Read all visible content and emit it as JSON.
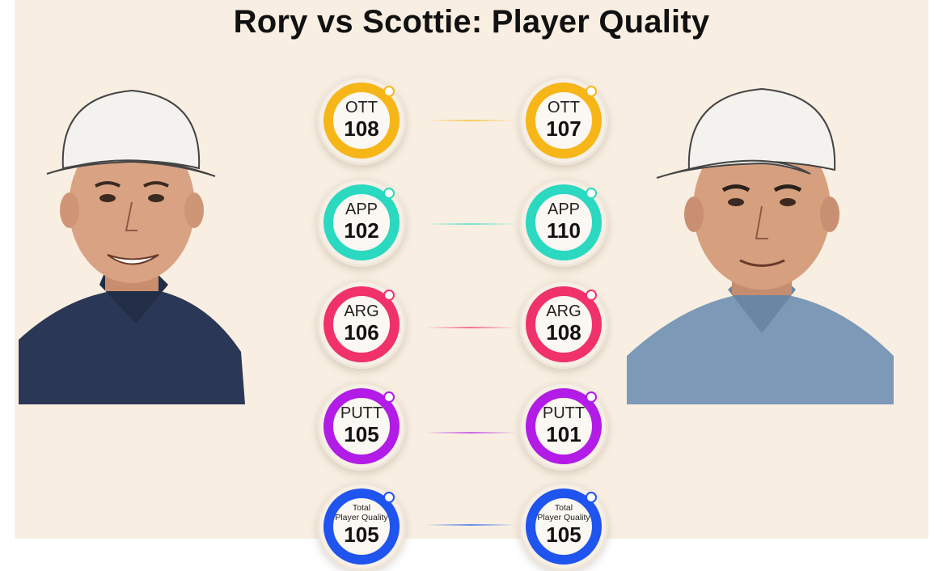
{
  "title": "Rory vs Scottie: Player Quality",
  "players": {
    "left": {
      "portrait_icon": "rory-sketch-portrait"
    },
    "right": {
      "portrait_icon": "scottie-sketch-portrait"
    }
  },
  "metrics": [
    {
      "label": "OTT",
      "rory": "108",
      "scottie": "107",
      "color": "#f6b618"
    },
    {
      "label": "APP",
      "rory": "102",
      "scottie": "110",
      "color": "#2ad9bf"
    },
    {
      "label": "ARG",
      "rory": "106",
      "scottie": "108",
      "color": "#f0316a"
    },
    {
      "label": "PUTT",
      "rory": "105",
      "scottie": "101",
      "color": "#b21ce6"
    },
    {
      "label_line1": "Total",
      "label_line2": "Player Quality",
      "rory": "105",
      "scottie": "105",
      "color": "#1f54ef"
    }
  ]
}
